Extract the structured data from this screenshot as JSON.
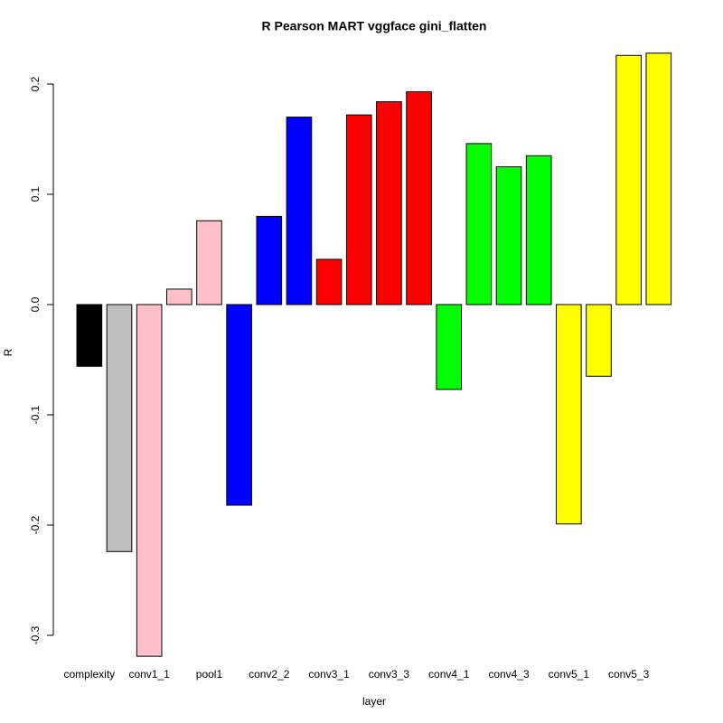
{
  "chart_data": {
    "type": "bar",
    "title": "R Pearson   MART   vggface   gini_flatten",
    "xlabel": "layer",
    "ylabel": "R",
    "categories": [
      "complexity",
      null,
      "conv1_1",
      null,
      "pool1",
      null,
      "conv2_2",
      null,
      "conv3_1",
      null,
      "conv3_3",
      null,
      "conv4_1",
      null,
      "conv4_3",
      null,
      "conv5_1",
      null,
      "conv5_3",
      null
    ],
    "values": [
      -0.056,
      -0.224,
      -0.319,
      0.014,
      0.076,
      -0.182,
      0.08,
      0.17,
      0.041,
      0.172,
      0.184,
      0.193,
      -0.077,
      0.146,
      0.125,
      0.135,
      -0.199,
      -0.065,
      0.226,
      0.228
    ],
    "colors": [
      "#000000",
      "#bebebe",
      "#ffc0cb",
      "#ffc0cb",
      "#ffc0cb",
      "#0000ff",
      "#0000ff",
      "#0000ff",
      "#ff0000",
      "#ff0000",
      "#ff0000",
      "#ff0000",
      "#00ff00",
      "#00ff00",
      "#00ff00",
      "#00ff00",
      "#ffff00",
      "#ffff00",
      "#ffff00",
      "#ffff00"
    ],
    "ylim": [
      -0.341,
      0.25
    ],
    "yticks": [
      -0.3,
      -0.2,
      -0.1,
      {
        "value": 0,
        "label": "0.0"
      },
      0.1,
      0.2
    ]
  }
}
